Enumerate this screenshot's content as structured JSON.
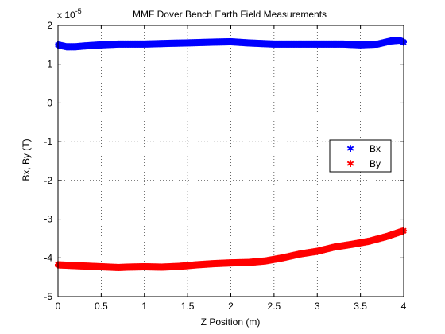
{
  "chart_data": {
    "type": "scatter",
    "title": "MMF Dover Bench Earth Field Measurements",
    "xlabel": "Z Position (m)",
    "ylabel": "Bx, By (T)",
    "y_exponent_label": "x 10",
    "y_exponent_power": "-5",
    "xlim": [
      0,
      4
    ],
    "ylim": [
      -5,
      2
    ],
    "x_ticks": [
      "0",
      "0.5",
      "1",
      "1.5",
      "2",
      "2.5",
      "3",
      "3.5",
      "4"
    ],
    "y_ticks": [
      "2",
      "1",
      "0",
      "-1",
      "-2",
      "-3",
      "-4",
      "-5"
    ],
    "grid": true,
    "legend_position": "right",
    "series": [
      {
        "name": "Bx",
        "color": "#0000ff",
        "marker": "asterisk",
        "x": [
          0.0,
          0.1,
          0.2,
          0.3,
          0.5,
          0.7,
          1.0,
          1.3,
          1.5,
          1.8,
          2.0,
          2.2,
          2.5,
          2.8,
          3.0,
          3.3,
          3.5,
          3.7,
          3.85,
          3.95,
          4.0
        ],
        "y": [
          1.5,
          1.45,
          1.45,
          1.47,
          1.5,
          1.52,
          1.52,
          1.54,
          1.55,
          1.57,
          1.58,
          1.55,
          1.52,
          1.52,
          1.52,
          1.52,
          1.5,
          1.52,
          1.6,
          1.62,
          1.57
        ]
      },
      {
        "name": "By",
        "color": "#ff0000",
        "marker": "asterisk",
        "x": [
          0.0,
          0.2,
          0.4,
          0.6,
          0.7,
          0.8,
          1.0,
          1.2,
          1.4,
          1.6,
          1.8,
          2.0,
          2.2,
          2.4,
          2.6,
          2.8,
          3.0,
          3.2,
          3.4,
          3.6,
          3.8,
          4.0
        ],
        "y": [
          -4.18,
          -4.2,
          -4.22,
          -4.24,
          -4.25,
          -4.24,
          -4.23,
          -4.24,
          -4.22,
          -4.18,
          -4.15,
          -4.13,
          -4.12,
          -4.08,
          -4.0,
          -3.9,
          -3.83,
          -3.72,
          -3.65,
          -3.57,
          -3.45,
          -3.3
        ]
      }
    ]
  }
}
